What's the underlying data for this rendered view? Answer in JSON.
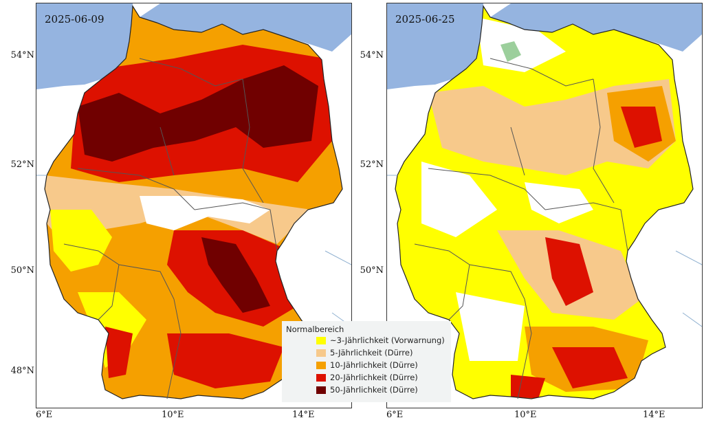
{
  "panels": [
    {
      "date": "2025-06-09"
    },
    {
      "date": "2025-06-25"
    }
  ],
  "axes": {
    "latitude_labels": [
      "54°N",
      "52°N",
      "50°N",
      "48°N"
    ],
    "longitude_labels": [
      "6°E",
      "10°E",
      "14°E"
    ]
  },
  "legend": {
    "title": "Normalbereich",
    "items": [
      {
        "label": "~3-Jährlichkeit (Vorwarnung)",
        "color": "#ffff00"
      },
      {
        "label": "5-Jährlichkeit (Dürre)",
        "color": "#f7c98b"
      },
      {
        "label": "10-Jährlichkeit (Dürre)",
        "color": "#f5a000"
      },
      {
        "label": "20-Jährlichkeit (Dürre)",
        "color": "#dd1100"
      },
      {
        "label": "50-Jährlichkeit (Dürre)",
        "color": "#700000"
      }
    ]
  },
  "colors": {
    "sea": "#95b4e0",
    "land_outside": "#ffffff",
    "state_border": "#555555",
    "river": "#8fb0d0"
  }
}
